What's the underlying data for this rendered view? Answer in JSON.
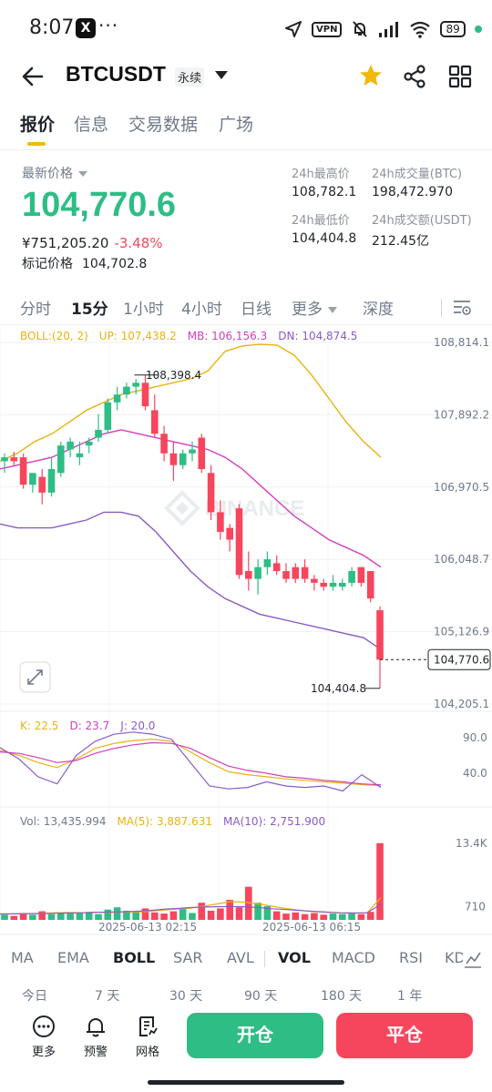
{
  "status_bar": {
    "time": "8:07",
    "x_app": "X",
    "dots": "···",
    "vpn": "VPN",
    "battery": "89"
  },
  "header": {
    "symbol": "BTCUSDT",
    "contract_type": "永续"
  },
  "tabs": [
    "报价",
    "信息",
    "交易数据",
    "广场"
  ],
  "price": {
    "label": "最新价格",
    "last": "104,770.6",
    "cny": "¥751,205.20",
    "change_pct": "-3.48%",
    "mark_label": "标记价格",
    "mark_value": "104,702.8"
  },
  "stats": {
    "high_label": "24h最高价",
    "high_value": "108,782.1",
    "vol_btc_label": "24h成交量(BTC)",
    "vol_btc_value": "198,472.970",
    "low_label": "24h最低价",
    "low_value": "104,404.8",
    "vol_usdt_label": "24h成交额(USDT)",
    "vol_usdt_value": "212.45亿"
  },
  "intervals": [
    "分时",
    "15分",
    "1小时",
    "4小时",
    "日线",
    "更多",
    "深度"
  ],
  "boll_legend": {
    "params": "BOLL:(20, 2)",
    "up": "UP: 107,438.2",
    "mb": "MB: 106,156.3",
    "dn": "DN: 104,874.5"
  },
  "kdj_legend": {
    "k": "K: 22.5",
    "d": "D: 23.7",
    "j": "J: 20.0"
  },
  "vol_legend": {
    "vol": "Vol: 13,435.994",
    "ma5": "MA(5): 3,887.631",
    "ma10": "MA(10): 2,751.900"
  },
  "indicator_tabs": [
    "MA",
    "EMA",
    "BOLL",
    "SAR",
    "AVL",
    "VOL",
    "MACD",
    "RSI",
    "KDJ"
  ],
  "ranges": [
    "今日",
    "7 天",
    "30 天",
    "90 天",
    "180 天",
    "1 年"
  ],
  "bottom": {
    "more": "更多",
    "alert": "预警",
    "grid": "网格",
    "open": "开仓",
    "close": "平仓"
  },
  "watermark": "BINANCE",
  "colors": {
    "up": "#2ebd85",
    "down": "#f6465d",
    "boll_up": "#e8b30f",
    "boll_mb": "#d13fbf",
    "boll_dn": "#8a5bc7",
    "accent": "#f0b90b"
  },
  "chart_data": {
    "type": "candlestick",
    "interval": "15分",
    "price_axis": [
      "108,814.1",
      "107,892.2",
      "106,970.5",
      "106,048.7",
      "105,126.9",
      "104,205.1"
    ],
    "price_ticks": [
      108814.1,
      107892.2,
      106970.5,
      106048.7,
      105126.9,
      104205.1
    ],
    "ylim": [
      104205.1,
      108814.1
    ],
    "current_price": "104,770.6",
    "current_value": 104770.6,
    "high_label": "108,398.4",
    "high_value": 108398.4,
    "low_label": "104,404.8",
    "low_value": 104404.8,
    "time_labels": [
      "2025-06-13 02:15",
      "2025-06-13 06:15"
    ],
    "kdj_axis": [
      "90.0",
      "40.0"
    ],
    "kdj_ticks": [
      90,
      40
    ],
    "vol_axis": [
      "13.4K",
      "710"
    ],
    "vol_ticks": [
      13400,
      710
    ],
    "candles": [
      {
        "o": 107300,
        "h": 107400,
        "l": 107150,
        "c": 107350
      },
      {
        "o": 107350,
        "h": 107420,
        "l": 107250,
        "c": 107300
      },
      {
        "o": 107350,
        "h": 107400,
        "l": 106950,
        "c": 107000
      },
      {
        "o": 107000,
        "h": 107150,
        "l": 106900,
        "c": 107150
      },
      {
        "o": 107100,
        "h": 107200,
        "l": 106750,
        "c": 106900
      },
      {
        "o": 106900,
        "h": 107350,
        "l": 106850,
        "c": 107200
      },
      {
        "o": 107150,
        "h": 107550,
        "l": 107100,
        "c": 107500
      },
      {
        "o": 107450,
        "h": 107600,
        "l": 107350,
        "c": 107550
      },
      {
        "o": 107350,
        "h": 107550,
        "l": 107250,
        "c": 107400
      },
      {
        "o": 107500,
        "h": 107600,
        "l": 107400,
        "c": 107550
      },
      {
        "o": 107600,
        "h": 107900,
        "l": 107550,
        "c": 107700
      },
      {
        "o": 107700,
        "h": 108100,
        "l": 107650,
        "c": 108050
      },
      {
        "o": 108050,
        "h": 108250,
        "l": 107950,
        "c": 108150
      },
      {
        "o": 108150,
        "h": 108300,
        "l": 108100,
        "c": 108250
      },
      {
        "o": 108250,
        "h": 108350,
        "l": 108150,
        "c": 108300
      },
      {
        "o": 108300,
        "h": 108398.4,
        "l": 107950,
        "c": 108000
      },
      {
        "o": 107950,
        "h": 108150,
        "l": 107600,
        "c": 107650
      },
      {
        "o": 107650,
        "h": 107750,
        "l": 107300,
        "c": 107400
      },
      {
        "o": 107400,
        "h": 107550,
        "l": 107050,
        "c": 107250
      },
      {
        "o": 107250,
        "h": 107450,
        "l": 107200,
        "c": 107400
      },
      {
        "o": 107400,
        "h": 107550,
        "l": 107300,
        "c": 107450
      },
      {
        "o": 107600,
        "h": 107650,
        "l": 107150,
        "c": 107200
      },
      {
        "o": 107150,
        "h": 107250,
        "l": 106550,
        "c": 106650
      },
      {
        "o": 106650,
        "h": 106800,
        "l": 106300,
        "c": 106400
      },
      {
        "o": 106450,
        "h": 106500,
        "l": 106150,
        "c": 106300
      },
      {
        "o": 106700,
        "h": 106750,
        "l": 105800,
        "c": 105850
      },
      {
        "o": 105900,
        "h": 106150,
        "l": 105650,
        "c": 105800
      },
      {
        "o": 105800,
        "h": 106050,
        "l": 105600,
        "c": 105950
      },
      {
        "o": 105950,
        "h": 106150,
        "l": 105850,
        "c": 106050
      },
      {
        "o": 106000,
        "h": 106100,
        "l": 105850,
        "c": 105900
      },
      {
        "o": 105900,
        "h": 106000,
        "l": 105750,
        "c": 105800
      },
      {
        "o": 105950,
        "h": 106000,
        "l": 105750,
        "c": 105800
      },
      {
        "o": 105950,
        "h": 106050,
        "l": 105750,
        "c": 105800
      },
      {
        "o": 105800,
        "h": 105850,
        "l": 105650,
        "c": 105750
      },
      {
        "o": 105750,
        "h": 105800,
        "l": 105650,
        "c": 105700
      },
      {
        "o": 105700,
        "h": 105850,
        "l": 105650,
        "c": 105750
      },
      {
        "o": 105700,
        "h": 105800,
        "l": 105650,
        "c": 105750
      },
      {
        "o": 105750,
        "h": 105950,
        "l": 105700,
        "c": 105900
      },
      {
        "o": 105950,
        "h": 105950,
        "l": 105700,
        "c": 105750
      },
      {
        "o": 105900,
        "h": 105900,
        "l": 105500,
        "c": 105550
      },
      {
        "o": 105400,
        "h": 105450,
        "l": 104404.8,
        "c": 104770.6
      }
    ],
    "boll_up": [
      107300,
      107400,
      107550,
      107650,
      107800,
      107950,
      108050,
      108150,
      108200,
      108250,
      108300,
      108350,
      108450,
      108700,
      108770,
      108790,
      108780,
      108650,
      108400,
      108100,
      107800,
      107550,
      107350
    ],
    "boll_mid": [
      107200,
      107250,
      107300,
      107350,
      107450,
      107550,
      107650,
      107700,
      107650,
      107600,
      107550,
      107500,
      107450,
      107350,
      107200,
      107000,
      106800,
      106600,
      106450,
      106300,
      106200,
      106100,
      105950
    ],
    "boll_dn": [
      106500,
      106450,
      106450,
      106450,
      106500,
      106550,
      106650,
      106650,
      106600,
      106400,
      106150,
      105900,
      105700,
      105550,
      105450,
      105350,
      105300,
      105250,
      105200,
      105150,
      105100,
      105050,
      104900
    ],
    "kdj_k": [
      72,
      65,
      55,
      48,
      60,
      75,
      82,
      86,
      88,
      85,
      70,
      55,
      42,
      38,
      35,
      32,
      30,
      28,
      26,
      24,
      22.5
    ],
    "kdj_d": [
      70,
      68,
      62,
      55,
      58,
      68,
      75,
      80,
      83,
      82,
      75,
      62,
      50,
      44,
      40,
      35,
      33,
      30,
      28,
      25,
      23.7
    ],
    "kdj_j": [
      76,
      60,
      35,
      25,
      65,
      85,
      95,
      98,
      95,
      88,
      55,
      22,
      18,
      20,
      28,
      22,
      20,
      22,
      15,
      38,
      20.0
    ],
    "volumes": [
      900,
      700,
      1200,
      900,
      1500,
      1000,
      1300,
      1100,
      1200,
      1400,
      1000,
      1800,
      2200,
      1600,
      1500,
      2000,
      1300,
      1100,
      1500,
      1900,
      1200,
      3000,
      1600,
      2000,
      3500,
      2200,
      5800,
      3000,
      2400,
      1500,
      1100,
      1300,
      1000,
      1200,
      900,
      1100,
      1000,
      1300,
      1000,
      1400,
      13435.994
    ],
    "vol_ma5": [
      1050,
      1050,
      1100,
      1150,
      1250,
      1300,
      1250,
      1350,
      1300,
      1400,
      1350,
      1500,
      1700,
      1900,
      2050,
      2400,
      2800,
      3200,
      3100,
      2800,
      2400,
      2000,
      1700,
      1450,
      1350,
      1200,
      1150,
      1250,
      3887.631
    ],
    "vol_ma10": [
      1000,
      1050,
      1100,
      1100,
      1150,
      1200,
      1250,
      1300,
      1350,
      1400,
      1500,
      1650,
      1850,
      2000,
      2150,
      2250,
      2300,
      2350,
      2300,
      2150,
      1950,
      1800,
      1650,
      1500,
      1350,
      1250,
      1200,
      1250,
      2751.9
    ]
  }
}
